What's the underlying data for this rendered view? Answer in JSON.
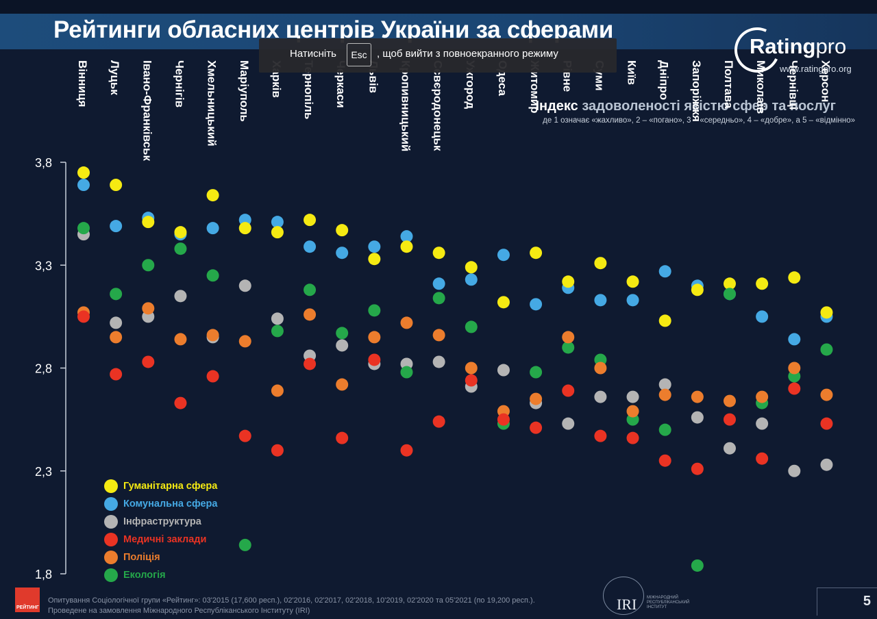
{
  "title": "Рейтинги обласних центрів України за сферами",
  "logo": {
    "brand_main": "Rating",
    "brand_suffix": "pro",
    "url": "www.ratingpro.org"
  },
  "fullscreen_notice": {
    "prefix": "Натисніть",
    "key": "Esc",
    "suffix": ", щоб вийти з повноекранного режиму"
  },
  "index_title": {
    "bold": "Індекс",
    "rest": "задоволеності якістю сфер та послуг"
  },
  "index_subtitle": "де 1 означає «жахливо», 2 – «погано», 3 – «середньо», 4 – «добре», а 5 – «відмінно»",
  "footer": {
    "line1": "Опитування Соціологічної групи «Рейтинг»: 03'2015 (17,600 респ.), 02'2016, 02'2017, 02'2018, 10'2019, 02'2020 та 05'2021 (по 19,200 респ.).",
    "line2": "Проведене на замовлення Міжнародного Республіканського Інституту (IRI)",
    "logo_text": "РЕЙТИНГ",
    "iri": "IRI",
    "iri_sub": "МІЖНАРОДНИЙ РЕСПУБЛІКАНСЬКИЙ ІНСТИТУТ"
  },
  "page_number": "5",
  "chart_data": {
    "type": "scatter",
    "title": "Рейтинги обласних центрів України за сферами",
    "ylim": [
      1.8,
      3.8
    ],
    "yticks": [
      "3,8",
      "3,3",
      "2,8",
      "2,3",
      "1,8"
    ],
    "ytick_values": [
      3.8,
      3.3,
      2.8,
      2.3,
      1.8
    ],
    "grid": false,
    "legend_position": "bottom-left",
    "categories": [
      "Вінниця",
      "Луцьк",
      "Івано-Франківськ",
      "Чернігів",
      "Хмельницький",
      "Маріуполь",
      "Харків",
      "Тернопіль",
      "Черкаси",
      "Львів",
      "Кропивницький",
      "Сєвєродонецьк",
      "Ужгород",
      "Одеса",
      "Житомир",
      "Рівне",
      "Суми",
      "Київ",
      "Дніпро",
      "Запоріжжя",
      "Полтава",
      "Миколаїв",
      "Чернівці",
      "Херсон"
    ],
    "series": [
      {
        "name": "Гуманітарна сфера",
        "color": "#f5ea12",
        "values": [
          3.75,
          3.69,
          3.51,
          3.46,
          3.64,
          3.48,
          3.46,
          3.52,
          3.47,
          3.33,
          3.39,
          3.36,
          3.29,
          3.12,
          3.36,
          3.22,
          3.31,
          3.22,
          3.03,
          3.18,
          3.21,
          3.21,
          3.24,
          3.07
        ]
      },
      {
        "name": "Комунальна сфера",
        "color": "#45a9e4",
        "values": [
          3.69,
          3.49,
          3.53,
          3.45,
          3.48,
          3.52,
          3.51,
          3.39,
          3.36,
          3.39,
          3.44,
          3.21,
          3.23,
          3.35,
          3.11,
          3.19,
          3.13,
          3.13,
          3.27,
          3.2,
          3.16,
          3.05,
          2.94,
          3.05
        ]
      },
      {
        "name": "Інфраструктура",
        "color": "#b4b4b4",
        "values": [
          3.45,
          3.02,
          3.05,
          3.15,
          2.95,
          3.2,
          3.04,
          2.86,
          2.91,
          2.82,
          2.82,
          2.83,
          2.71,
          2.79,
          2.63,
          2.53,
          2.66,
          2.66,
          2.72,
          2.56,
          2.41,
          2.53,
          2.3,
          2.33
        ]
      },
      {
        "name": "Медичні заклади",
        "color": "#ea3323",
        "values": [
          3.05,
          2.77,
          2.83,
          2.63,
          2.76,
          2.47,
          2.4,
          2.82,
          2.46,
          2.84,
          2.4,
          2.54,
          2.74,
          2.55,
          2.51,
          2.69,
          2.47,
          2.46,
          2.35,
          2.31,
          2.55,
          2.36,
          2.7,
          2.53
        ]
      },
      {
        "name": "Поліція",
        "color": "#ec7d2d",
        "values": [
          3.07,
          2.95,
          3.09,
          2.94,
          2.96,
          2.93,
          2.69,
          3.06,
          2.72,
          2.95,
          3.02,
          2.96,
          2.8,
          2.59,
          2.65,
          2.95,
          2.8,
          2.59,
          2.67,
          2.66,
          2.64,
          2.66,
          2.8,
          2.67
        ]
      },
      {
        "name": "Екологія",
        "color": "#25a84a",
        "values": [
          3.48,
          3.16,
          3.3,
          3.38,
          3.25,
          1.94,
          2.98,
          3.18,
          2.97,
          3.08,
          2.78,
          3.14,
          3.0,
          2.53,
          2.78,
          2.9,
          2.84,
          2.55,
          2.5,
          1.84,
          3.16,
          2.63,
          2.76,
          2.89
        ]
      }
    ]
  }
}
